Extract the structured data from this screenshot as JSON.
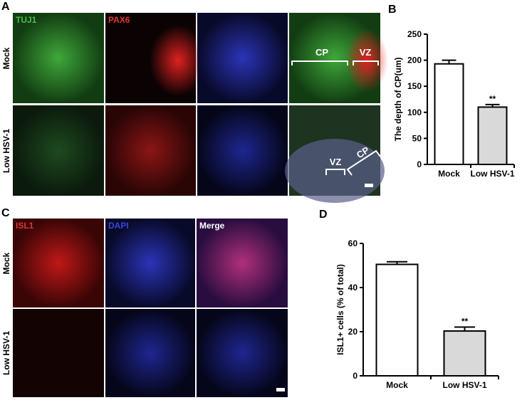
{
  "panels": {
    "A": {
      "label": "A",
      "markers": [
        "TUJ1",
        "PAX6"
      ],
      "rows": [
        "Mock",
        "Low HSV-1"
      ],
      "annotations": [
        "CP",
        "VZ",
        "VZ",
        "CP"
      ]
    },
    "C": {
      "label": "C",
      "markers": [
        "ISL1",
        "DAPI",
        "Merge"
      ],
      "rows": [
        "Mock",
        "Low HSV-1"
      ]
    }
  },
  "chart_data": [
    {
      "type": "bar",
      "panel_label": "B",
      "ylabel": "The depth of CP(um)",
      "categories": [
        "Mock",
        "Low HSV-1"
      ],
      "values": [
        193,
        110
      ],
      "errors": [
        7,
        5
      ],
      "colors": [
        "#ffffff",
        "#d9d9d9"
      ],
      "annotation": "**",
      "ylim": [
        0,
        250
      ],
      "yticks": [
        0,
        50,
        100,
        150,
        200,
        250
      ]
    },
    {
      "type": "bar",
      "panel_label": "D",
      "ylabel": "ISL1+ cells (% of total)",
      "categories": [
        "Mock",
        "Low HSV-1"
      ],
      "values": [
        50.5,
        20.3
      ],
      "errors": [
        1.2,
        1.8
      ],
      "colors": [
        "#ffffff",
        "#d9d9d9"
      ],
      "annotation": "**",
      "ylim": [
        0,
        60
      ],
      "yticks": [
        0,
        20,
        40,
        60
      ]
    }
  ]
}
